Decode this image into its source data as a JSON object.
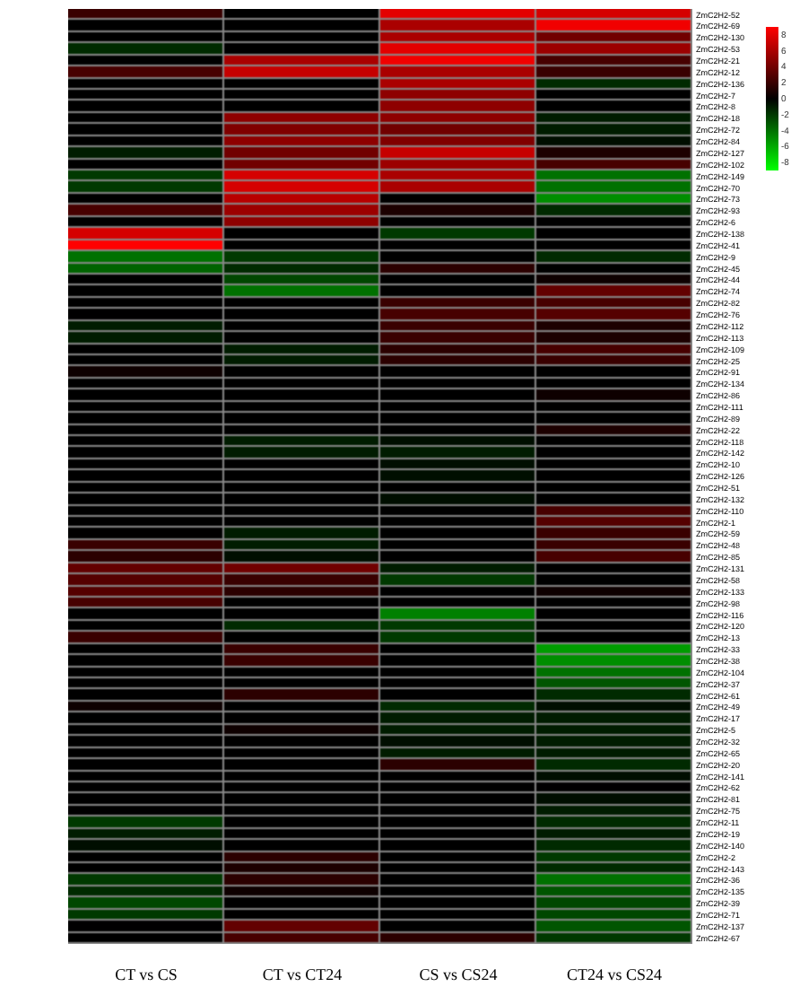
{
  "chart_data": {
    "type": "heatmap",
    "categories": [
      "CT vs CS",
      "CT vs CT24",
      "CS vs CS24",
      "CT24 vs CS24"
    ],
    "y_categories": [
      "ZmC2H2-52",
      "ZmC2H2-69",
      "ZmC2H2-130",
      "ZmC2H2-53",
      "ZmC2H2-21",
      "ZmC2H2-12",
      "ZmC2H2-136",
      "ZmC2H2-7",
      "ZmC2H2-8",
      "ZmC2H2-18",
      "ZmC2H2-72",
      "ZmC2H2-84",
      "ZmC2H2-127",
      "ZmC2H2-102",
      "ZmC2H2-149",
      "ZmC2H2-70",
      "ZmC2H2-73",
      "ZmC2H2-93",
      "ZmC2H2-6",
      "ZmC2H2-138",
      "ZmC2H2-41",
      "ZmC2H2-9",
      "ZmC2H2-45",
      "ZmC2H2-44",
      "ZmC2H2-74",
      "ZmC2H2-82",
      "ZmC2H2-76",
      "ZmC2H2-112",
      "ZmC2H2-113",
      "ZmC2H2-109",
      "ZmC2H2-25",
      "ZmC2H2-91",
      "ZmC2H2-134",
      "ZmC2H2-86",
      "ZmC2H2-111",
      "ZmC2H2-89",
      "ZmC2H2-22",
      "ZmC2H2-118",
      "ZmC2H2-142",
      "ZmC2H2-10",
      "ZmC2H2-126",
      "ZmC2H2-51",
      "ZmC2H2-132",
      "ZmC2H2-110",
      "ZmC2H2-1",
      "ZmC2H2-59",
      "ZmC2H2-48",
      "ZmC2H2-85",
      "ZmC2H2-131",
      "ZmC2H2-58",
      "ZmC2H2-133",
      "ZmC2H2-98",
      "ZmC2H2-116",
      "ZmC2H2-120",
      "ZmC2H2-13",
      "ZmC2H2-33",
      "ZmC2H2-38",
      "ZmC2H2-104",
      "ZmC2H2-37",
      "ZmC2H2-61",
      "ZmC2H2-49",
      "ZmC2H2-17",
      "ZmC2H2-5",
      "ZmC2H2-32",
      "ZmC2H2-65",
      "ZmC2H2-20",
      "ZmC2H2-141",
      "ZmC2H2-62",
      "ZmC2H2-81",
      "ZmC2H2-75",
      "ZmC2H2-11",
      "ZmC2H2-19",
      "ZmC2H2-140",
      "ZmC2H2-2",
      "ZmC2H2-143",
      "ZmC2H2-36",
      "ZmC2H2-135",
      "ZmC2H2-39",
      "ZmC2H2-71",
      "ZmC2H2-137",
      "ZmC2H2-67"
    ],
    "cells": [
      [
        2,
        0,
        8,
        7.5
      ],
      [
        0,
        0,
        6,
        8.5
      ],
      [
        0,
        0,
        6,
        4
      ],
      [
        -1.5,
        0,
        8,
        5.5
      ],
      [
        0,
        6,
        8.5,
        2.5
      ],
      [
        2.5,
        7,
        6,
        2
      ],
      [
        0,
        0,
        6,
        -1.5
      ],
      [
        0,
        0,
        5,
        0
      ],
      [
        0,
        0,
        5,
        0
      ],
      [
        0,
        5,
        5,
        -1
      ],
      [
        0,
        4.5,
        4,
        -1
      ],
      [
        0,
        5,
        4.5,
        -0.5
      ],
      [
        -1,
        4,
        7,
        1
      ],
      [
        0,
        4,
        5.5,
        2.5
      ],
      [
        -2,
        7.5,
        6,
        -4
      ],
      [
        -2,
        7.5,
        6,
        -4
      ],
      [
        0,
        6.5,
        0,
        -5
      ],
      [
        2.5,
        5.5,
        1,
        -1.5
      ],
      [
        0,
        5,
        0,
        0
      ],
      [
        7.5,
        0,
        -2,
        0
      ],
      [
        9,
        0,
        0,
        0
      ],
      [
        -4,
        -2,
        0,
        -1.5
      ],
      [
        -3.5,
        -1.5,
        1.5,
        0
      ],
      [
        0,
        -2.5,
        0,
        0.5
      ],
      [
        0,
        -4,
        0,
        3.5
      ],
      [
        0,
        0,
        2,
        2.5
      ],
      [
        0,
        0,
        2.5,
        3
      ],
      [
        -1,
        0,
        2,
        1
      ],
      [
        -1,
        0,
        2,
        1
      ],
      [
        0,
        -1,
        1.5,
        2.5
      ],
      [
        0,
        -1,
        1.5,
        2
      ],
      [
        0.5,
        0,
        0,
        0
      ],
      [
        0,
        0,
        0,
        0
      ],
      [
        0,
        0,
        0,
        0.5
      ],
      [
        0,
        0,
        0,
        0
      ],
      [
        0,
        0,
        0,
        0
      ],
      [
        0,
        0,
        0,
        1
      ],
      [
        0,
        -1,
        -0.5,
        0
      ],
      [
        0,
        -1,
        -1,
        0
      ],
      [
        0,
        0,
        -0.5,
        0
      ],
      [
        0,
        0,
        -0.5,
        0
      ],
      [
        0,
        0,
        0,
        0
      ],
      [
        0,
        0,
        -0.5,
        0
      ],
      [
        0,
        0,
        0,
        2.5
      ],
      [
        0,
        0,
        0,
        3
      ],
      [
        0,
        -1,
        0,
        2
      ],
      [
        2,
        -1,
        0,
        2
      ],
      [
        1.5,
        -0.5,
        0,
        2.5
      ],
      [
        3.5,
        4,
        -1,
        0
      ],
      [
        3,
        2,
        -2,
        0
      ],
      [
        3,
        1.5,
        0,
        0.5
      ],
      [
        2.5,
        0,
        0,
        0
      ],
      [
        0,
        0,
        -4.5,
        0
      ],
      [
        0,
        -1.5,
        -2,
        0
      ],
      [
        2,
        0,
        -2,
        0
      ],
      [
        0,
        2,
        0,
        -5.5
      ],
      [
        0,
        2,
        0,
        -5
      ],
      [
        0,
        0,
        0,
        -4
      ],
      [
        0,
        0,
        0,
        -3
      ],
      [
        0,
        1.5,
        0,
        -1.5
      ],
      [
        0.5,
        0,
        -1.5,
        -0.5
      ],
      [
        0,
        0,
        -1,
        -1
      ],
      [
        0,
        0.5,
        -1,
        -1
      ],
      [
        0,
        0,
        -0.5,
        -1
      ],
      [
        0,
        0,
        -1,
        -1
      ],
      [
        0,
        0,
        1.5,
        -1.5
      ],
      [
        0,
        0,
        0,
        -0.5
      ],
      [
        0,
        0,
        0,
        0
      ],
      [
        0,
        0,
        0,
        -0.5
      ],
      [
        0,
        0,
        0,
        -1
      ],
      [
        -2,
        0,
        0,
        -1.5
      ],
      [
        -1,
        0,
        0,
        -1
      ],
      [
        -0.5,
        0,
        0,
        -1.5
      ],
      [
        0,
        1.5,
        0,
        -2
      ],
      [
        0,
        1,
        0,
        -1.5
      ],
      [
        -2,
        1.5,
        0,
        -4
      ],
      [
        -1.5,
        0.5,
        0,
        -3
      ],
      [
        -2.5,
        0,
        0,
        -2.5
      ],
      [
        -2,
        0,
        0,
        -2.5
      ],
      [
        0,
        3.5,
        0,
        -3
      ],
      [
        0,
        2.5,
        1.5,
        -2
      ]
    ],
    "clim": [
      -9,
      9
    ],
    "cticks": [
      8,
      6,
      4,
      2,
      0,
      -2,
      -4,
      -6,
      -8
    ]
  }
}
